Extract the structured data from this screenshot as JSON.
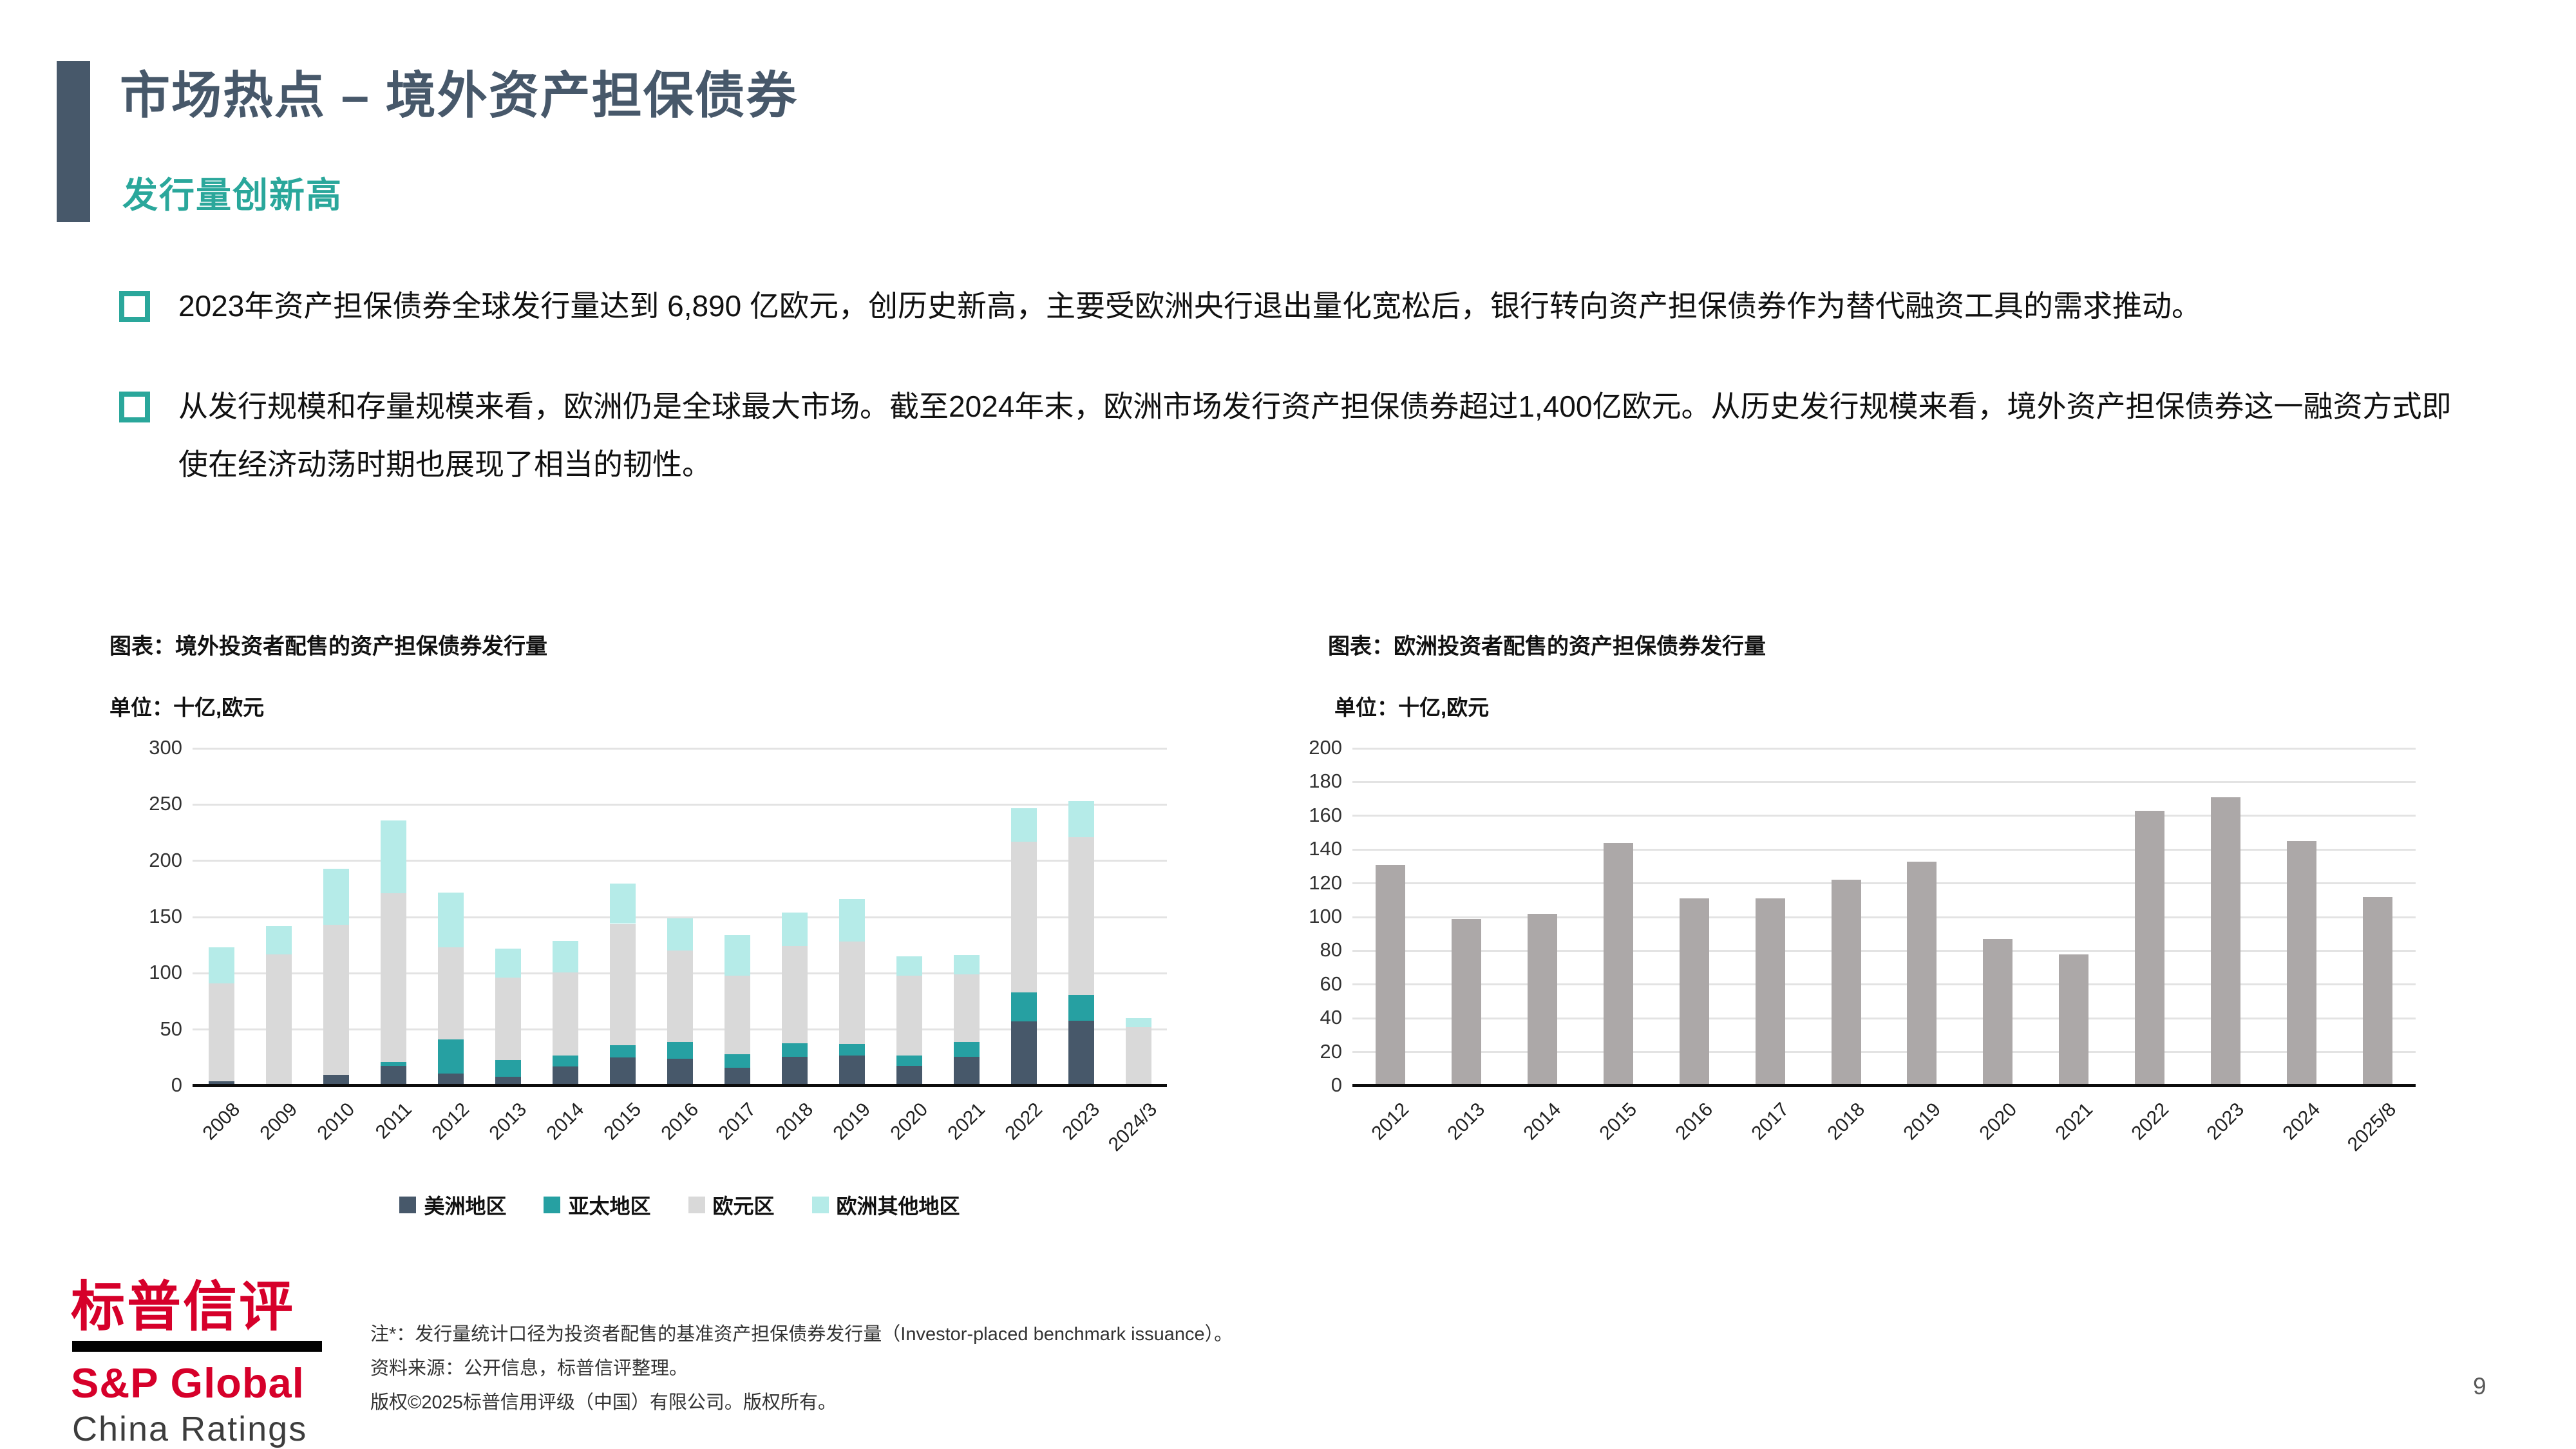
{
  "header": {
    "title": "市场热点 – 境外资产担保债券",
    "subtitle": "发行量创新高",
    "accent_color": "#47586a",
    "subtitle_color": "#2aa79b"
  },
  "bullets": [
    {
      "text": "2023年资产担保债券全球发行量达到 6,890 亿欧元，创历史新高，主要受欧洲央行退出量化宽松后，银行转向资产担保债券作为替代融资工具的需求推动。"
    },
    {
      "text": "从发行规模和存量规模来看，欧洲仍是全球最大市场。截至2024年末，欧洲市场发行资产担保债券超过1,400亿欧元。从历史发行规模来看，境外资产担保债券这一融资方式即使在经济动荡时期也展现了相当的韧性。"
    }
  ],
  "chart_data": [
    {
      "type": "bar",
      "stacked": true,
      "title": "图表：境外投资者配售的资产担保债券发行量",
      "unit_label": "单位：十亿,欧元",
      "categories": [
        "2008",
        "2009",
        "2010",
        "2011",
        "2012",
        "2013",
        "2014",
        "2015",
        "2016",
        "2017",
        "2018",
        "2019",
        "2020",
        "2021",
        "2022",
        "2023",
        "2024/3"
      ],
      "series": [
        {
          "name": "美洲地区",
          "color": "#47586a",
          "values": [
            4,
            0,
            10,
            18,
            11,
            8,
            17,
            25,
            24,
            16,
            26,
            27,
            18,
            26,
            57,
            58,
            0
          ]
        },
        {
          "name": "亚太地区",
          "color": "#26a0a2",
          "values": [
            0,
            0,
            0,
            3,
            30,
            15,
            10,
            11,
            15,
            12,
            12,
            10,
            9,
            13,
            26,
            23,
            2
          ]
        },
        {
          "name": "欧元区",
          "color": "#d9d9d9",
          "values": [
            87,
            117,
            133,
            150,
            82,
            73,
            74,
            108,
            81,
            70,
            86,
            91,
            71,
            60,
            134,
            140,
            50
          ]
        },
        {
          "name": "欧洲其他地区",
          "color": "#b5ebe8",
          "values": [
            32,
            25,
            50,
            65,
            49,
            26,
            28,
            36,
            29,
            36,
            30,
            38,
            17,
            17,
            30,
            32,
            8
          ]
        }
      ],
      "ylim": [
        0,
        300
      ],
      "ytick_step": 50,
      "grid": true,
      "legend_position": "bottom"
    },
    {
      "type": "bar",
      "stacked": false,
      "title": "图表：欧洲投资者配售的资产担保债券发行量",
      "unit_label": "单位：十亿,欧元",
      "categories": [
        "2012",
        "2013",
        "2014",
        "2015",
        "2016",
        "2017",
        "2018",
        "2019",
        "2020",
        "2021",
        "2022",
        "2023",
        "2024",
        "2025/8"
      ],
      "series": [
        {
          "name": "发行量",
          "color": "#aca8a8",
          "values": [
            131,
            99,
            102,
            144,
            111,
            111,
            122,
            133,
            87,
            78,
            163,
            171,
            145,
            112
          ]
        }
      ],
      "ylim": [
        0,
        200
      ],
      "ytick_step": 20,
      "grid": true,
      "legend_position": "none"
    }
  ],
  "footer": {
    "logo_cn": "标普信评",
    "logo_line1": "S&P Global",
    "logo_line2": "China Ratings",
    "notes": [
      "注*：发行量统计口径为投资者配售的基准资产担保债券发行量（Investor-placed benchmark issuance）。",
      "资料来源：公开信息，标普信评整理。",
      "版权©2025标普信用评级（中国）有限公司。版权所有。"
    ],
    "page_number": "9"
  }
}
